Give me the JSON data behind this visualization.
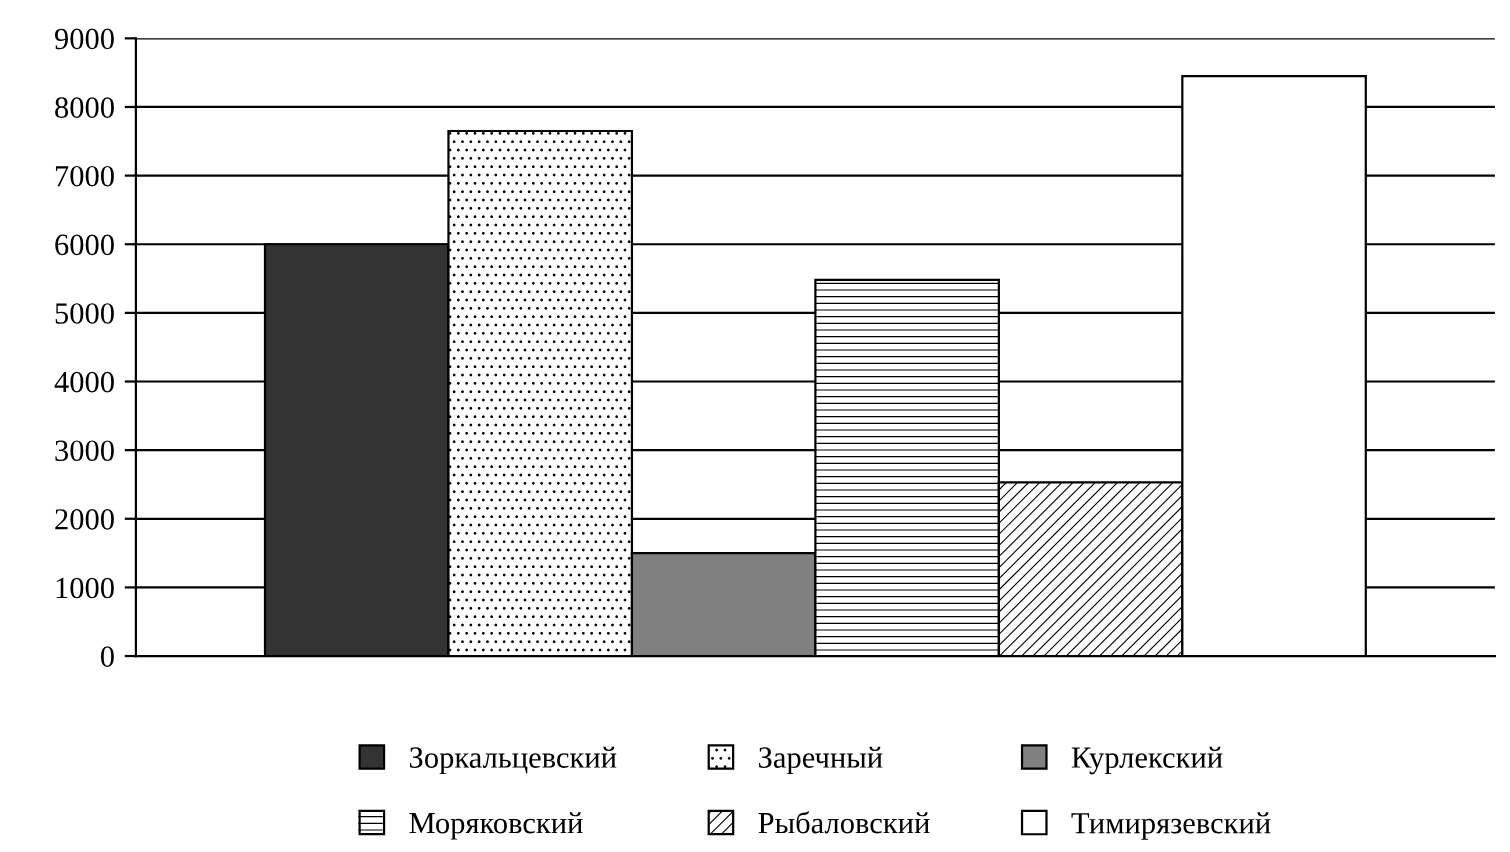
{
  "chart_data": {
    "type": "bar",
    "categories": [
      null
    ],
    "series": [
      {
        "name": "Зоркальцевский",
        "color": "#333333",
        "values": [
          6000
        ]
      },
      {
        "name": "Заречный",
        "color": "#ffffff",
        "values": [
          7650
        ]
      },
      {
        "name": "Курлекский",
        "color": "#808080",
        "values": [
          1500
        ]
      },
      {
        "name": "Моряковский",
        "color": "#ffffff",
        "values": [
          5480
        ]
      },
      {
        "name": "Рыбаловский",
        "color": "#ffffff",
        "values": [
          2530
        ]
      },
      {
        "name": "Тимирязевский",
        "color": "#ffffff",
        "values": [
          8450
        ]
      }
    ],
    "ylim": [
      0,
      9000
    ],
    "yticks": [
      0,
      1000,
      2000,
      3000,
      4000,
      5000,
      6000,
      7000,
      8000,
      9000
    ],
    "grid": "y",
    "legend": "bottom"
  }
}
